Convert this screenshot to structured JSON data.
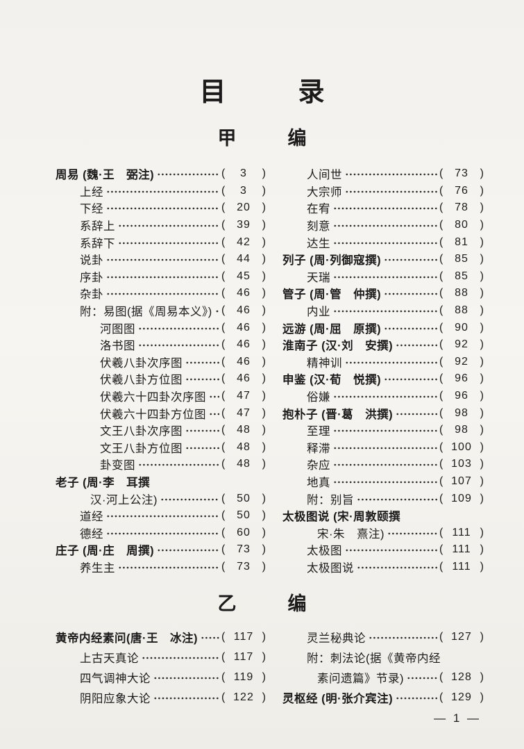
{
  "document": {
    "title_chars": [
      "目",
      "录"
    ],
    "footer_text": "— 1 —"
  },
  "sections": [
    {
      "heading_chars": [
        "甲",
        "编"
      ],
      "left": [
        {
          "text": "周易 (魏·王　弼注)",
          "page": "3",
          "bold": true,
          "indent": "none"
        },
        {
          "text": "上经",
          "page": "3",
          "indent": "sub"
        },
        {
          "text": "下经",
          "page": "20",
          "indent": "sub"
        },
        {
          "text": "系辞上",
          "page": "39",
          "indent": "sub"
        },
        {
          "text": "系辞下",
          "page": "42",
          "indent": "sub"
        },
        {
          "text": "说卦",
          "page": "44",
          "indent": "sub"
        },
        {
          "text": "序卦",
          "page": "45",
          "indent": "sub"
        },
        {
          "text": "杂卦",
          "page": "46",
          "indent": "sub"
        },
        {
          "text": "附：易图(据《周易本义》)",
          "page": "46",
          "indent": "sub"
        },
        {
          "text": "河图图",
          "page": "46",
          "indent": "subsub"
        },
        {
          "text": "洛书图",
          "page": "46",
          "indent": "subsub"
        },
        {
          "text": "伏羲八卦次序图",
          "page": "46",
          "indent": "subsub"
        },
        {
          "text": "伏羲八卦方位图",
          "page": "46",
          "indent": "subsub"
        },
        {
          "text": "伏羲六十四卦次序图",
          "page": "47",
          "indent": "subsub"
        },
        {
          "text": "伏羲六十四卦方位图",
          "page": "47",
          "indent": "subsub"
        },
        {
          "text": "文王八卦次序图",
          "page": "48",
          "indent": "subsub"
        },
        {
          "text": "文王八卦方位图",
          "page": "48",
          "indent": "subsub"
        },
        {
          "text": "卦变图",
          "page": "48",
          "indent": "subsub"
        },
        {
          "text": "老子 (周·李　耳撰",
          "page": null,
          "bold": true,
          "indent": "none"
        },
        {
          "text": "汉·河上公注)",
          "page": "50",
          "indent": "cont"
        },
        {
          "text": "道经",
          "page": "50",
          "indent": "sub"
        },
        {
          "text": "德经",
          "page": "60",
          "indent": "sub"
        },
        {
          "text": "庄子 (周·庄　周撰)",
          "page": "73",
          "bold": true,
          "indent": "none"
        },
        {
          "text": "养生主",
          "page": "73",
          "indent": "sub"
        }
      ],
      "right": [
        {
          "text": "人间世",
          "page": "73",
          "indent": "sub"
        },
        {
          "text": "大宗师",
          "page": "76",
          "indent": "sub"
        },
        {
          "text": "在宥",
          "page": "78",
          "indent": "sub"
        },
        {
          "text": "刻意",
          "page": "80",
          "indent": "sub"
        },
        {
          "text": "达生",
          "page": "81",
          "indent": "sub"
        },
        {
          "text": "列子 (周·列御寇撰)",
          "page": "85",
          "bold": true,
          "indent": "none"
        },
        {
          "text": "天瑞",
          "page": "85",
          "indent": "sub"
        },
        {
          "text": "管子 (周·管　仲撰)",
          "page": "88",
          "bold": true,
          "indent": "none"
        },
        {
          "text": "内业",
          "page": "88",
          "indent": "sub"
        },
        {
          "text": "远游 (周·屈　原撰)",
          "page": "90",
          "bold": true,
          "indent": "none"
        },
        {
          "text": "淮南子 (汉·刘　安撰)",
          "page": "92",
          "bold": true,
          "indent": "none"
        },
        {
          "text": "精神训",
          "page": "92",
          "indent": "sub"
        },
        {
          "text": "申鉴 (汉·荀　悦撰)",
          "page": "96",
          "bold": true,
          "indent": "none"
        },
        {
          "text": "俗嫌",
          "page": "96",
          "indent": "sub"
        },
        {
          "text": "抱朴子 (晋·葛　洪撰)",
          "page": "98",
          "bold": true,
          "indent": "none"
        },
        {
          "text": "至理",
          "page": "98",
          "indent": "sub"
        },
        {
          "text": "释滞",
          "page": "100",
          "indent": "sub"
        },
        {
          "text": "杂应",
          "page": "103",
          "indent": "sub"
        },
        {
          "text": "地真",
          "page": "107",
          "indent": "sub"
        },
        {
          "text": "附：别旨",
          "page": "109",
          "indent": "sub"
        },
        {
          "text": "太极图说 (宋·周敦颐撰",
          "page": null,
          "bold": true,
          "indent": "none"
        },
        {
          "text": "宋·朱　熹注)",
          "page": "111",
          "indent": "cont"
        },
        {
          "text": "太极图",
          "page": "111",
          "indent": "sub"
        },
        {
          "text": "太极图说",
          "page": "111",
          "indent": "sub"
        }
      ]
    },
    {
      "heading_chars": [
        "乙",
        "编"
      ],
      "left": [
        {
          "text": "黄帝内经素问(唐·王　冰注)",
          "page": "117",
          "bold": true,
          "indent": "none"
        },
        {
          "text": "上古天真论",
          "page": "117",
          "indent": "sub"
        },
        {
          "text": "四气调神大论",
          "page": "119",
          "indent": "sub"
        },
        {
          "text": "阴阳应象大论",
          "page": "122",
          "indent": "sub"
        }
      ],
      "right": [
        {
          "text": "灵兰秘典论",
          "page": "127",
          "indent": "sub"
        },
        {
          "text": "附：刺法论(据《黄帝内经",
          "page": null,
          "indent": "sub"
        },
        {
          "text": "素问遗篇》节录)",
          "page": "128",
          "indent": "cont"
        },
        {
          "text": "灵枢经 (明·张介宾注)",
          "page": "129",
          "bold": true,
          "indent": "none"
        }
      ]
    }
  ]
}
